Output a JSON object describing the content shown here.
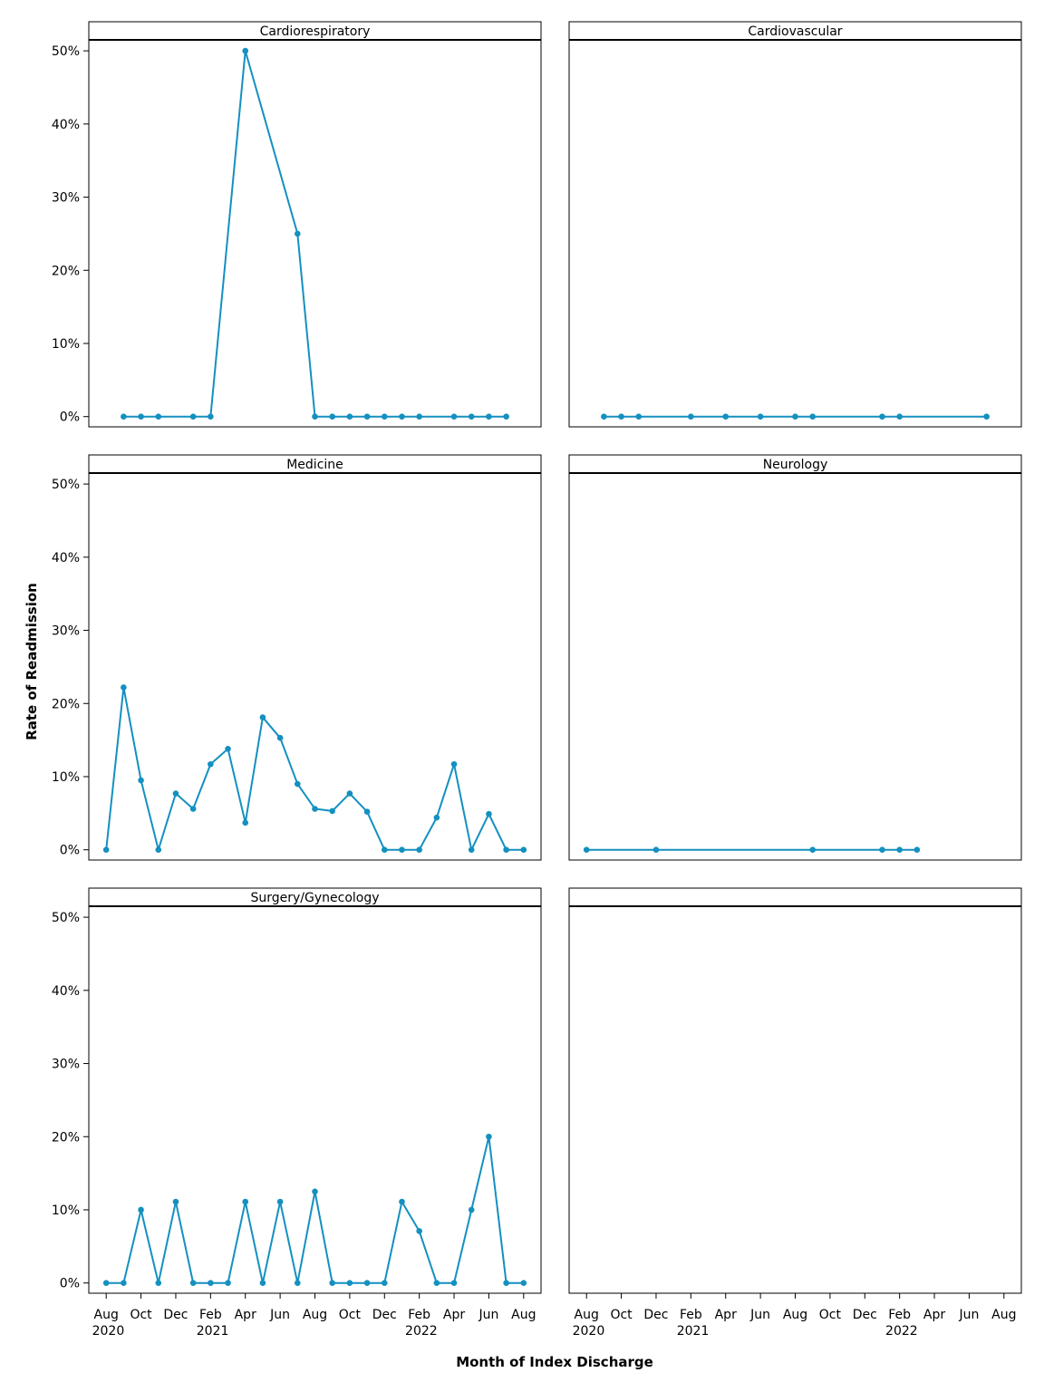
{
  "chart_data": {
    "type": "line",
    "x_label": "Month of Index Discharge",
    "y_label": "Rate of Readmission",
    "color": "#1490c0",
    "xlim": [
      "2020-07",
      "2022-09"
    ],
    "xticks": [
      {
        "value": "2020-08",
        "label": "Aug\n2020"
      },
      {
        "value": "2020-10",
        "label": "Oct"
      },
      {
        "value": "2020-12",
        "label": "Dec"
      },
      {
        "value": "2021-02",
        "label": "Feb\n2021"
      },
      {
        "value": "2021-04",
        "label": "Apr"
      },
      {
        "value": "2021-06",
        "label": "Jun"
      },
      {
        "value": "2021-08",
        "label": "Aug"
      },
      {
        "value": "2021-10",
        "label": "Oct"
      },
      {
        "value": "2021-12",
        "label": "Dec"
      },
      {
        "value": "2022-02",
        "label": "Feb\n2022"
      },
      {
        "value": "2022-04",
        "label": "Apr"
      },
      {
        "value": "2022-06",
        "label": "Jun"
      },
      {
        "value": "2022-08",
        "label": "Aug"
      }
    ],
    "ylim": [
      -1.4,
      51.5
    ],
    "yticks": [
      {
        "value": 0,
        "label": "0%"
      },
      {
        "value": 10,
        "label": "10%"
      },
      {
        "value": 20,
        "label": "20%"
      },
      {
        "value": 30,
        "label": "30%"
      },
      {
        "value": 40,
        "label": "40%"
      },
      {
        "value": 50,
        "label": "50%"
      }
    ],
    "panels": [
      {
        "title": "Cardiorespiratory",
        "x": [
          "2020-09",
          "2020-10",
          "2020-11",
          "2021-01",
          "2021-02",
          "2021-04",
          "2021-07",
          "2021-08",
          "2021-09",
          "2021-10",
          "2021-11",
          "2021-12",
          "2022-01",
          "2022-02",
          "2022-04",
          "2022-05",
          "2022-06",
          "2022-07"
        ],
        "values": [
          0,
          0,
          0,
          0,
          0,
          50,
          25,
          0,
          0,
          0,
          0,
          0,
          0,
          0,
          0,
          0,
          0,
          0
        ]
      },
      {
        "title": "Cardiovascular",
        "x": [
          "2020-09",
          "2020-10",
          "2020-11",
          "2021-02",
          "2021-04",
          "2021-06",
          "2021-08",
          "2021-09",
          "2022-01",
          "2022-02",
          "2022-07"
        ],
        "values": [
          0,
          0,
          0,
          0,
          0,
          0,
          0,
          0,
          0,
          0,
          0
        ]
      },
      {
        "title": "Medicine",
        "x": [
          "2020-08",
          "2020-09",
          "2020-10",
          "2020-11",
          "2020-12",
          "2021-01",
          "2021-02",
          "2021-03",
          "2021-04",
          "2021-05",
          "2021-06",
          "2021-07",
          "2021-08",
          "2021-09",
          "2021-10",
          "2021-11",
          "2021-12",
          "2022-01",
          "2022-02",
          "2022-03",
          "2022-04",
          "2022-05",
          "2022-06",
          "2022-07",
          "2022-08"
        ],
        "values": [
          0,
          22.2,
          9.5,
          0,
          7.7,
          5.6,
          11.7,
          13.8,
          3.7,
          18.1,
          15.3,
          9.0,
          5.6,
          5.3,
          7.7,
          5.2,
          0,
          0,
          0,
          4.4,
          11.7,
          0,
          4.9,
          0,
          0
        ]
      },
      {
        "title": "Neurology",
        "x": [
          "2020-08",
          "2020-12",
          "2021-09",
          "2022-01",
          "2022-02",
          "2022-03"
        ],
        "values": [
          0,
          0,
          0,
          0,
          0,
          0
        ]
      },
      {
        "title": "Surgery/Gynecology",
        "x": [
          "2020-08",
          "2020-09",
          "2020-10",
          "2020-11",
          "2020-12",
          "2021-01",
          "2021-02",
          "2021-03",
          "2021-04",
          "2021-05",
          "2021-06",
          "2021-07",
          "2021-08",
          "2021-09",
          "2021-10",
          "2021-11",
          "2021-12",
          "2022-01",
          "2022-02",
          "2022-03",
          "2022-04",
          "2022-05",
          "2022-06",
          "2022-07",
          "2022-08"
        ],
        "values": [
          0,
          0,
          10,
          0,
          11.1,
          0,
          0,
          0,
          11.1,
          0,
          11.1,
          0,
          12.5,
          0,
          0,
          0,
          0,
          11.1,
          7.1,
          0,
          0,
          10,
          20,
          0,
          0
        ]
      }
    ]
  }
}
